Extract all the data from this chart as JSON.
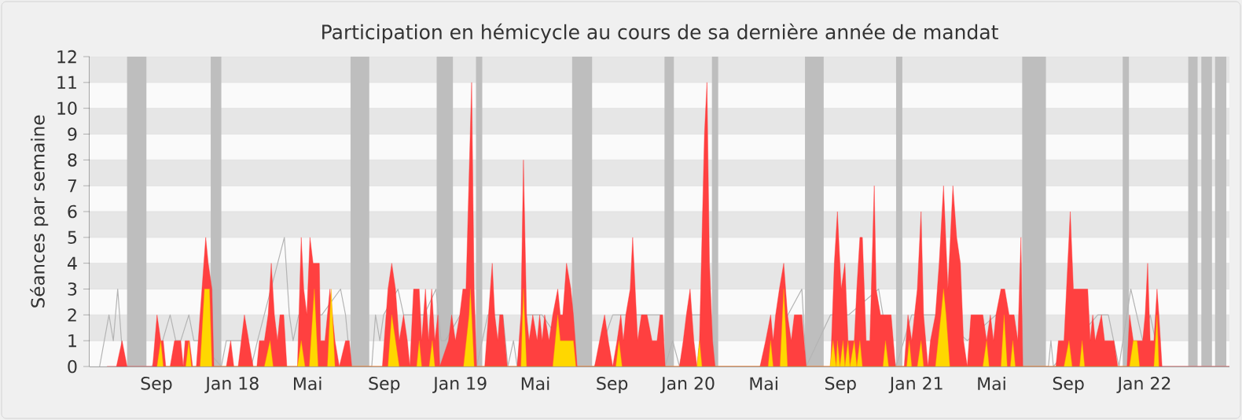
{
  "chart_data": {
    "type": "area",
    "title": "Participation en hémicycle au cours de sa dernière année de mandat",
    "ylabel": "Séances par semaine",
    "xlim": [
      "2017-05-17",
      "2022-05-17"
    ],
    "ylim": [
      0,
      12
    ],
    "xticks": [
      {
        "value": "2017-09-01",
        "label": "Sep"
      },
      {
        "value": "2018-01-01",
        "label": "Jan 18"
      },
      {
        "value": "2018-05-01",
        "label": "Mai"
      },
      {
        "value": "2018-09-01",
        "label": "Sep"
      },
      {
        "value": "2019-01-01",
        "label": "Jan 19"
      },
      {
        "value": "2019-05-01",
        "label": "Mai"
      },
      {
        "value": "2019-09-01",
        "label": "Sep"
      },
      {
        "value": "2020-01-01",
        "label": "Jan 20"
      },
      {
        "value": "2020-05-01",
        "label": "Mai"
      },
      {
        "value": "2020-09-01",
        "label": "Sep"
      },
      {
        "value": "2021-01-01",
        "label": "Jan 21"
      },
      {
        "value": "2021-05-01",
        "label": "Mai"
      },
      {
        "value": "2021-09-01",
        "label": "Sep"
      },
      {
        "value": "2022-01-01",
        "label": "Jan 22"
      }
    ],
    "yticks": [
      0,
      1,
      2,
      3,
      4,
      5,
      6,
      7,
      8,
      9,
      10,
      11,
      12
    ],
    "grid": "y",
    "bands": [
      {
        "axis": "x",
        "from": "2017-07-16",
        "to": "2017-08-16",
        "color": "#bebebe"
      },
      {
        "axis": "x",
        "from": "2017-11-27",
        "to": "2017-12-14",
        "color": "#bebebe"
      },
      {
        "axis": "x",
        "from": "2018-07-09",
        "to": "2018-08-08",
        "color": "#bebebe"
      },
      {
        "axis": "x",
        "from": "2018-11-24",
        "to": "2018-12-20",
        "color": "#bebebe"
      },
      {
        "axis": "x",
        "from": "2019-01-26",
        "to": "2019-02-05",
        "color": "#bebebe"
      },
      {
        "axis": "x",
        "from": "2019-06-29",
        "to": "2019-07-31",
        "color": "#bebebe"
      },
      {
        "axis": "x",
        "from": "2019-11-24",
        "to": "2019-12-09",
        "color": "#bebebe"
      },
      {
        "axis": "x",
        "from": "2020-02-08",
        "to": "2020-02-18",
        "color": "#bebebe"
      },
      {
        "axis": "x",
        "from": "2020-07-06",
        "to": "2020-08-05",
        "color": "#bebebe"
      },
      {
        "axis": "x",
        "from": "2020-11-29",
        "to": "2020-12-09",
        "color": "#bebebe"
      },
      {
        "axis": "x",
        "from": "2021-06-19",
        "to": "2021-07-27",
        "color": "#bebebe"
      },
      {
        "axis": "x",
        "from": "2021-11-27",
        "to": "2021-12-07",
        "color": "#bebebe"
      },
      {
        "axis": "x",
        "from": "2022-03-12",
        "to": "2022-03-27",
        "color": "#bebebe"
      },
      {
        "axis": "x",
        "from": "2022-04-02",
        "to": "2022-04-19",
        "color": "#bebebe"
      },
      {
        "axis": "x",
        "from": "2022-04-24",
        "to": "2022-05-12",
        "color": "#bebebe"
      }
    ],
    "series": [
      {
        "type": "line",
        "color": "#b4b4b4",
        "x": [
          "2017-06-02",
          "2017-06-17",
          "2017-06-24",
          "2017-07-01",
          "2017-07-07",
          "2017-07-12",
          "2017-08-25",
          "2017-09-11",
          "2017-09-23",
          "2017-10-02",
          "2017-10-10",
          "2017-10-23",
          "2017-10-31",
          "2017-11-07",
          "2017-11-18",
          "2017-12-14",
          "2017-12-22",
          "2018-01-06",
          "2018-01-15",
          "2018-01-31",
          "2018-02-10",
          "2018-03-14",
          "2018-03-25",
          "2018-04-02",
          "2018-04-08",
          "2018-04-17",
          "2018-05-04",
          "2018-05-24",
          "2018-06-23",
          "2018-07-01",
          "2018-07-09",
          "2018-08-12",
          "2018-08-18",
          "2018-08-25",
          "2018-08-31",
          "2018-09-23",
          "2018-10-02",
          "2018-11-04",
          "2018-11-23",
          "2018-12-01",
          "2018-12-08",
          "2019-01-01",
          "2019-01-19",
          "2019-01-27",
          "2019-02-14",
          "2019-03-10",
          "2019-03-18",
          "2019-03-27",
          "2019-04-02",
          "2019-04-12",
          "2019-05-12",
          "2019-06-14",
          "2019-07-07",
          "2019-08-04",
          "2019-08-20",
          "2019-09-02",
          "2019-09-23",
          "2019-10-23",
          "2019-11-17",
          "2019-11-25",
          "2019-12-07",
          "2019-12-18",
          "2020-01-04",
          "2020-01-23",
          "2020-02-13",
          "2020-04-25",
          "2020-05-27",
          "2020-07-01",
          "2020-07-08",
          "2020-08-16",
          "2020-09-14",
          "2020-11-01",
          "2020-11-08",
          "2020-11-29",
          "2020-12-24",
          "2021-02-07",
          "2021-03-23",
          "2021-05-08",
          "2021-05-24",
          "2021-06-20",
          "2021-07-31",
          "2021-08-04",
          "2021-08-08",
          "2021-09-06",
          "2021-10-18",
          "2021-11-04",
          "2021-11-21",
          "2021-12-10",
          "2021-12-29",
          "2022-01-10",
          "2022-01-27",
          "2022-05-17"
        ],
        "values": [
          0,
          2,
          1,
          3,
          1,
          0,
          0,
          1,
          2,
          1,
          1,
          2,
          1,
          1,
          null,
          0,
          1,
          1,
          1,
          0,
          1,
          null,
          5,
          2,
          1,
          2,
          null,
          2,
          3,
          2,
          0,
          0,
          2,
          1,
          2,
          3,
          2,
          2,
          3,
          1,
          1,
          2,
          3,
          0,
          2,
          2,
          0,
          1,
          0,
          2,
          2,
          null,
          0,
          0,
          null,
          2,
          2,
          2,
          2,
          0,
          1,
          0,
          2,
          2,
          0,
          0,
          null,
          3,
          0,
          2,
          2,
          3,
          2,
          0,
          2,
          2,
          1,
          2,
          null,
          0,
          0,
          1,
          0,
          null,
          2,
          2,
          0,
          3,
          1,
          2,
          0,
          0
        ]
      },
      {
        "color": "#ff4040",
        "x": [
          "2017-06-14",
          "2017-06-29",
          "2017-07-08",
          "2017-07-16",
          "2017-08-26",
          "2017-09-02",
          "2017-09-08",
          "2017-09-12",
          "2017-09-16",
          "2017-09-23",
          "2017-09-30",
          "2017-10-10",
          "2017-10-14",
          "2017-10-17",
          "2017-10-24",
          "2017-10-29",
          "2017-11-04",
          "2017-11-10",
          "2017-11-19",
          "2017-11-23",
          "2017-11-29",
          "2017-12-02",
          "2017-12-22",
          "2017-12-29",
          "2018-01-03",
          "2018-01-10",
          "2018-01-20",
          "2018-01-27",
          "2018-02-03",
          "2018-02-09",
          "2018-02-13",
          "2018-02-21",
          "2018-02-27",
          "2018-03-04",
          "2018-03-09",
          "2018-03-14",
          "2018-03-18",
          "2018-03-24",
          "2018-03-29",
          "2018-04-15",
          "2018-04-21",
          "2018-04-25",
          "2018-04-30",
          "2018-05-05",
          "2018-05-10",
          "2018-05-16",
          "2018-05-20",
          "2018-05-22",
          "2018-05-29",
          "2018-06-06",
          "2018-06-10",
          "2018-06-14",
          "2018-06-21",
          "2018-07-01",
          "2018-07-07",
          "2018-07-11",
          "2018-08-29",
          "2018-09-07",
          "2018-09-13",
          "2018-09-19",
          "2018-09-25",
          "2018-10-02",
          "2018-10-08",
          "2018-10-12",
          "2018-10-18",
          "2018-10-27",
          "2018-10-31",
          "2018-11-06",
          "2018-11-11",
          "2018-11-16",
          "2018-11-21",
          "2018-11-26",
          "2018-11-29",
          "2018-12-13",
          "2018-12-18",
          "2018-12-24",
          "2018-12-31",
          "2019-01-05",
          "2019-01-10",
          "2019-01-19",
          "2019-01-23",
          "2019-01-27",
          "2019-02-09",
          "2019-02-15",
          "2019-02-21",
          "2019-02-25",
          "2019-03-02",
          "2019-03-05",
          "2019-03-10",
          "2019-03-17",
          "2019-04-02",
          "2019-04-08",
          "2019-04-12",
          "2019-04-17",
          "2019-04-21",
          "2019-04-27",
          "2019-05-04",
          "2019-05-08",
          "2019-05-12",
          "2019-05-16",
          "2019-05-23",
          "2019-05-29",
          "2019-06-06",
          "2019-06-10",
          "2019-06-14",
          "2019-06-20",
          "2019-06-27",
          "2019-07-01",
          "2019-07-07",
          "2019-08-04",
          "2019-08-12",
          "2019-08-20",
          "2019-08-26",
          "2019-09-02",
          "2019-09-09",
          "2019-09-15",
          "2019-09-19",
          "2019-09-23",
          "2019-09-30",
          "2019-10-04",
          "2019-10-08",
          "2019-10-12",
          "2019-10-18",
          "2019-10-27",
          "2019-11-04",
          "2019-11-12",
          "2019-11-17",
          "2019-11-21",
          "2019-11-25",
          "2019-12-18",
          "2019-12-24",
          "2019-12-29",
          "2020-01-04",
          "2020-01-10",
          "2020-01-15",
          "2020-01-19",
          "2020-01-23",
          "2020-01-27",
          "2020-01-31",
          "2020-02-04",
          "2020-02-09",
          "2020-02-13",
          "2020-04-25",
          "2020-05-04",
          "2020-05-12",
          "2020-05-16",
          "2020-05-20",
          "2020-05-26",
          "2020-06-02",
          "2020-06-08",
          "2020-06-14",
          "2020-06-19",
          "2020-07-01",
          "2020-07-08",
          "2020-08-16",
          "2020-08-22",
          "2020-08-27",
          "2020-09-02",
          "2020-09-08",
          "2020-09-13",
          "2020-09-19",
          "2020-09-23",
          "2020-09-27",
          "2020-10-02",
          "2020-10-06",
          "2020-10-12",
          "2020-10-18",
          "2020-10-25",
          "2020-10-28",
          "2020-11-04",
          "2020-11-21",
          "2020-11-28",
          "2020-12-12",
          "2020-12-18",
          "2020-12-24",
          "2021-01-02",
          "2021-01-08",
          "2021-01-12",
          "2021-01-19",
          "2021-01-23",
          "2021-01-31",
          "2021-02-06",
          "2021-02-13",
          "2021-02-20",
          "2021-02-28",
          "2021-03-06",
          "2021-03-12",
          "2021-03-17",
          "2021-03-23",
          "2021-03-29",
          "2021-04-17",
          "2021-04-23",
          "2021-04-29",
          "2021-05-04",
          "2021-05-08",
          "2021-05-16",
          "2021-05-22",
          "2021-05-29",
          "2021-06-06",
          "2021-06-12",
          "2021-06-17",
          "2021-06-20",
          "2021-08-12",
          "2021-08-16",
          "2021-08-25",
          "2021-08-29",
          "2021-09-04",
          "2021-09-09",
          "2021-09-13",
          "2021-09-19",
          "2021-10-02",
          "2021-10-06",
          "2021-10-10",
          "2021-10-14",
          "2021-10-24",
          "2021-10-29",
          "2021-11-08",
          "2021-11-13",
          "2021-11-19",
          "2021-12-04",
          "2021-12-08",
          "2021-12-14",
          "2021-12-29",
          "2022-01-02",
          "2022-01-06",
          "2022-01-10",
          "2022-01-16",
          "2022-01-21",
          "2022-01-24",
          "2022-01-29",
          "2022-05-17"
        ],
        "values": [
          0,
          0,
          1,
          0,
          0,
          2,
          1,
          1,
          0,
          0,
          1,
          1,
          0,
          1,
          1,
          0,
          0,
          2,
          5,
          4,
          3,
          0,
          0,
          1,
          0,
          0,
          2,
          1,
          0,
          0,
          1,
          1,
          2,
          4,
          2,
          1,
          2,
          2,
          0,
          0,
          5,
          3,
          2,
          5,
          4,
          4,
          4,
          1,
          1,
          3,
          2,
          1,
          0,
          1,
          1,
          0,
          0,
          3,
          4,
          3,
          1,
          2,
          1,
          0,
          3,
          3,
          1,
          3,
          1,
          3,
          1,
          2,
          0,
          1,
          2,
          1,
          2,
          3,
          3,
          11,
          3,
          0,
          0,
          2,
          4,
          2,
          1,
          2,
          2,
          0,
          0,
          2,
          8,
          2,
          1,
          2,
          1,
          2,
          1,
          2,
          1,
          2,
          3,
          2,
          2,
          4,
          3,
          2,
          0,
          0,
          1,
          2,
          1,
          0,
          1,
          2,
          1,
          2,
          3,
          5,
          3,
          1,
          2,
          2,
          1,
          1,
          2,
          2,
          0,
          0,
          1,
          2,
          3,
          1,
          0,
          1,
          5,
          9,
          11,
          4,
          1,
          0,
          0,
          1,
          2,
          1,
          2,
          3,
          4,
          2,
          1,
          2,
          2,
          0,
          0,
          4,
          6,
          3,
          4,
          1,
          1,
          1,
          3,
          5,
          5,
          1,
          1,
          7,
          3,
          2,
          2,
          0,
          0,
          2,
          1,
          3,
          6,
          2,
          0,
          1,
          2,
          4,
          7,
          3,
          7,
          5,
          4,
          1,
          0,
          2,
          2,
          1,
          2,
          1,
          2,
          3,
          3,
          2,
          2,
          1,
          5,
          0,
          0,
          1,
          1,
          3,
          6,
          3,
          3,
          3,
          3,
          1,
          2,
          1,
          2,
          1,
          1,
          1,
          0,
          0,
          2,
          1,
          1,
          2,
          4,
          1,
          1,
          3,
          2,
          0,
          0
        ]
      },
      {
        "color": "#ffd700",
        "x": [
          "2017-09-02",
          "2017-09-08",
          "2017-09-12",
          "2017-10-18",
          "2017-10-23",
          "2017-10-27",
          "2017-11-10",
          "2017-11-17",
          "2017-11-25",
          "2017-11-29",
          "2018-02-21",
          "2018-03-02",
          "2018-03-07",
          "2018-04-15",
          "2018-04-21",
          "2018-04-27",
          "2018-05-04",
          "2018-05-12",
          "2018-05-18",
          "2018-06-02",
          "2018-06-08",
          "2018-06-14",
          "2018-09-07",
          "2018-09-13",
          "2018-09-19",
          "2018-09-25",
          "2018-10-23",
          "2018-10-27",
          "2018-10-31",
          "2018-11-12",
          "2018-11-17",
          "2018-11-21",
          "2019-01-06",
          "2019-01-15",
          "2019-01-17",
          "2019-01-23",
          "2019-04-08",
          "2019-04-12",
          "2019-04-17",
          "2019-05-29",
          "2019-06-06",
          "2019-06-10",
          "2019-06-23",
          "2019-07-01",
          "2019-07-05",
          "2019-09-07",
          "2019-09-12",
          "2019-09-17",
          "2020-01-15",
          "2020-01-19",
          "2020-01-23",
          "2020-05-08",
          "2020-05-12",
          "2020-05-16",
          "2020-05-27",
          "2020-06-02",
          "2020-06-08",
          "2020-08-15",
          "2020-08-20",
          "2020-08-25",
          "2020-08-27",
          "2020-08-31",
          "2020-09-05",
          "2020-09-08",
          "2020-09-13",
          "2020-09-16",
          "2020-09-23",
          "2020-09-27",
          "2020-10-02",
          "2020-10-06",
          "2020-11-08",
          "2020-11-12",
          "2020-11-17",
          "2020-12-16",
          "2020-12-20",
          "2020-12-24",
          "2021-01-02",
          "2021-01-08",
          "2021-01-12",
          "2021-01-31",
          "2021-02-09",
          "2021-02-13",
          "2021-02-17",
          "2021-02-23",
          "2021-04-17",
          "2021-04-23",
          "2021-04-27",
          "2021-05-16",
          "2021-05-21",
          "2021-05-26",
          "2021-05-31",
          "2021-06-04",
          "2021-06-08",
          "2021-08-25",
          "2021-09-02",
          "2021-09-07",
          "2021-09-19",
          "2021-09-23",
          "2021-09-27",
          "2021-12-08",
          "2021-12-14",
          "2021-12-20",
          "2021-12-24",
          "2022-01-16",
          "2022-01-21",
          "2022-01-24"
        ],
        "values": [
          0,
          1,
          0,
          0,
          1,
          0,
          0,
          3,
          3,
          0,
          0,
          1,
          0,
          0,
          1,
          0,
          0,
          3,
          0,
          0,
          3,
          0,
          0,
          2,
          1,
          0,
          0,
          1,
          0,
          0,
          1,
          0,
          0,
          2,
          3,
          0,
          0,
          3,
          0,
          0,
          2,
          1,
          1,
          1,
          0,
          0,
          1,
          0,
          0,
          1,
          0,
          0,
          1,
          0,
          0,
          3,
          0,
          0,
          1,
          0,
          1,
          0,
          1,
          0,
          1,
          0,
          1,
          0,
          1,
          0,
          0,
          1,
          0,
          0,
          1,
          0,
          0,
          1,
          0,
          0,
          2,
          3,
          2,
          0,
          0,
          1,
          0,
          0,
          2,
          0,
          0,
          1,
          0,
          0,
          1,
          0,
          0,
          1,
          0,
          0,
          1,
          1,
          0,
          0,
          2,
          0
        ]
      }
    ]
  }
}
